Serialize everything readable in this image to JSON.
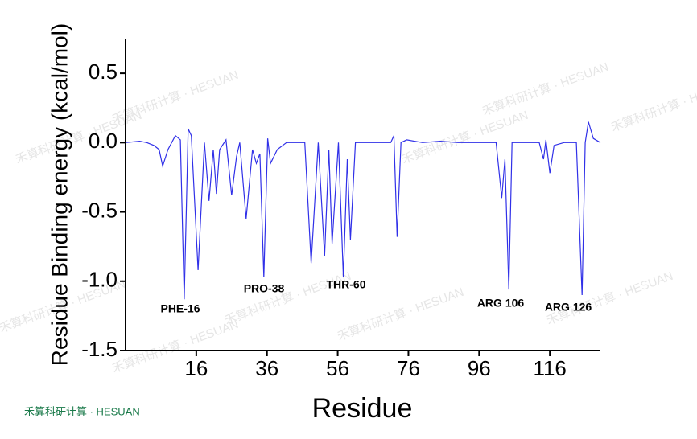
{
  "chart_data": {
    "type": "line",
    "x_label": "Residue",
    "y_label": "Residue Binding energy (kcal/mol)",
    "xlim": [
      -4,
      130.3
    ],
    "ylim": [
      -1.5,
      0.75
    ],
    "xticks": [
      16,
      36,
      56,
      76,
      96,
      116
    ],
    "yticks": [
      {
        "value": 0.5,
        "label": "0.5"
      },
      {
        "value": 0,
        "label": "0.0"
      },
      {
        "value": -0.5,
        "label": "-0.5"
      },
      {
        "value": -1,
        "label": "-1.0"
      },
      {
        "value": -1.5,
        "label": "-1.5"
      }
    ],
    "x": [
      -4,
      0,
      2,
      4,
      5.5,
      6.5,
      8,
      10.1,
      11.5,
      12.6,
      13.7,
      14.6,
      16.5,
      18.3,
      19.6,
      20.8,
      21.7,
      22.6,
      24.4,
      26,
      27.4,
      28.3,
      30.1,
      31.9,
      33,
      34,
      35.1,
      36.2,
      37,
      38.9,
      41.5,
      44,
      46.7,
      48.5,
      50.5,
      52.3,
      53.5,
      54.4,
      56.2,
      57.6,
      58.7,
      59.6,
      61,
      66,
      71,
      71.9,
      72.8,
      73.9,
      75.5,
      80,
      85,
      90,
      95,
      100.8,
      102.4,
      103.3,
      104.4,
      105.3,
      110,
      113,
      114.2,
      114.9,
      116,
      117.2,
      120,
      123.5,
      125.1,
      126,
      126.9,
      128.3,
      130.3
    ],
    "series": [
      {
        "name": "Residue Binding energy",
        "color": "#3030e8",
        "values": [
          0.0,
          0.01,
          0.0,
          -0.02,
          -0.05,
          -0.17,
          -0.05,
          0.05,
          0.02,
          -1.13,
          0.1,
          0.05,
          -0.92,
          0.0,
          -0.42,
          -0.05,
          -0.37,
          -0.05,
          0.02,
          -0.38,
          -0.1,
          0.0,
          -0.55,
          -0.05,
          -0.15,
          -0.08,
          -0.97,
          0.03,
          -0.15,
          -0.05,
          0.0,
          0.0,
          0.0,
          -0.87,
          0.0,
          -0.82,
          -0.05,
          -0.73,
          0.0,
          -0.97,
          -0.12,
          -0.7,
          0.0,
          0.0,
          0.0,
          0.05,
          -0.68,
          0.0,
          0.02,
          0.0,
          0.01,
          0.0,
          0.0,
          0.0,
          -0.4,
          -0.12,
          -1.06,
          0.0,
          0.0,
          0.0,
          -0.12,
          0.02,
          -0.22,
          -0.02,
          0.0,
          0.0,
          -1.1,
          0.0,
          0.15,
          0.03,
          0.0
        ]
      }
    ],
    "annotations": [
      "PHE-16",
      "PRO-38",
      "THR-60",
      "ARG 106",
      "ARG 126"
    ],
    "watermark": "禾算科研计算 · HESUAN"
  }
}
